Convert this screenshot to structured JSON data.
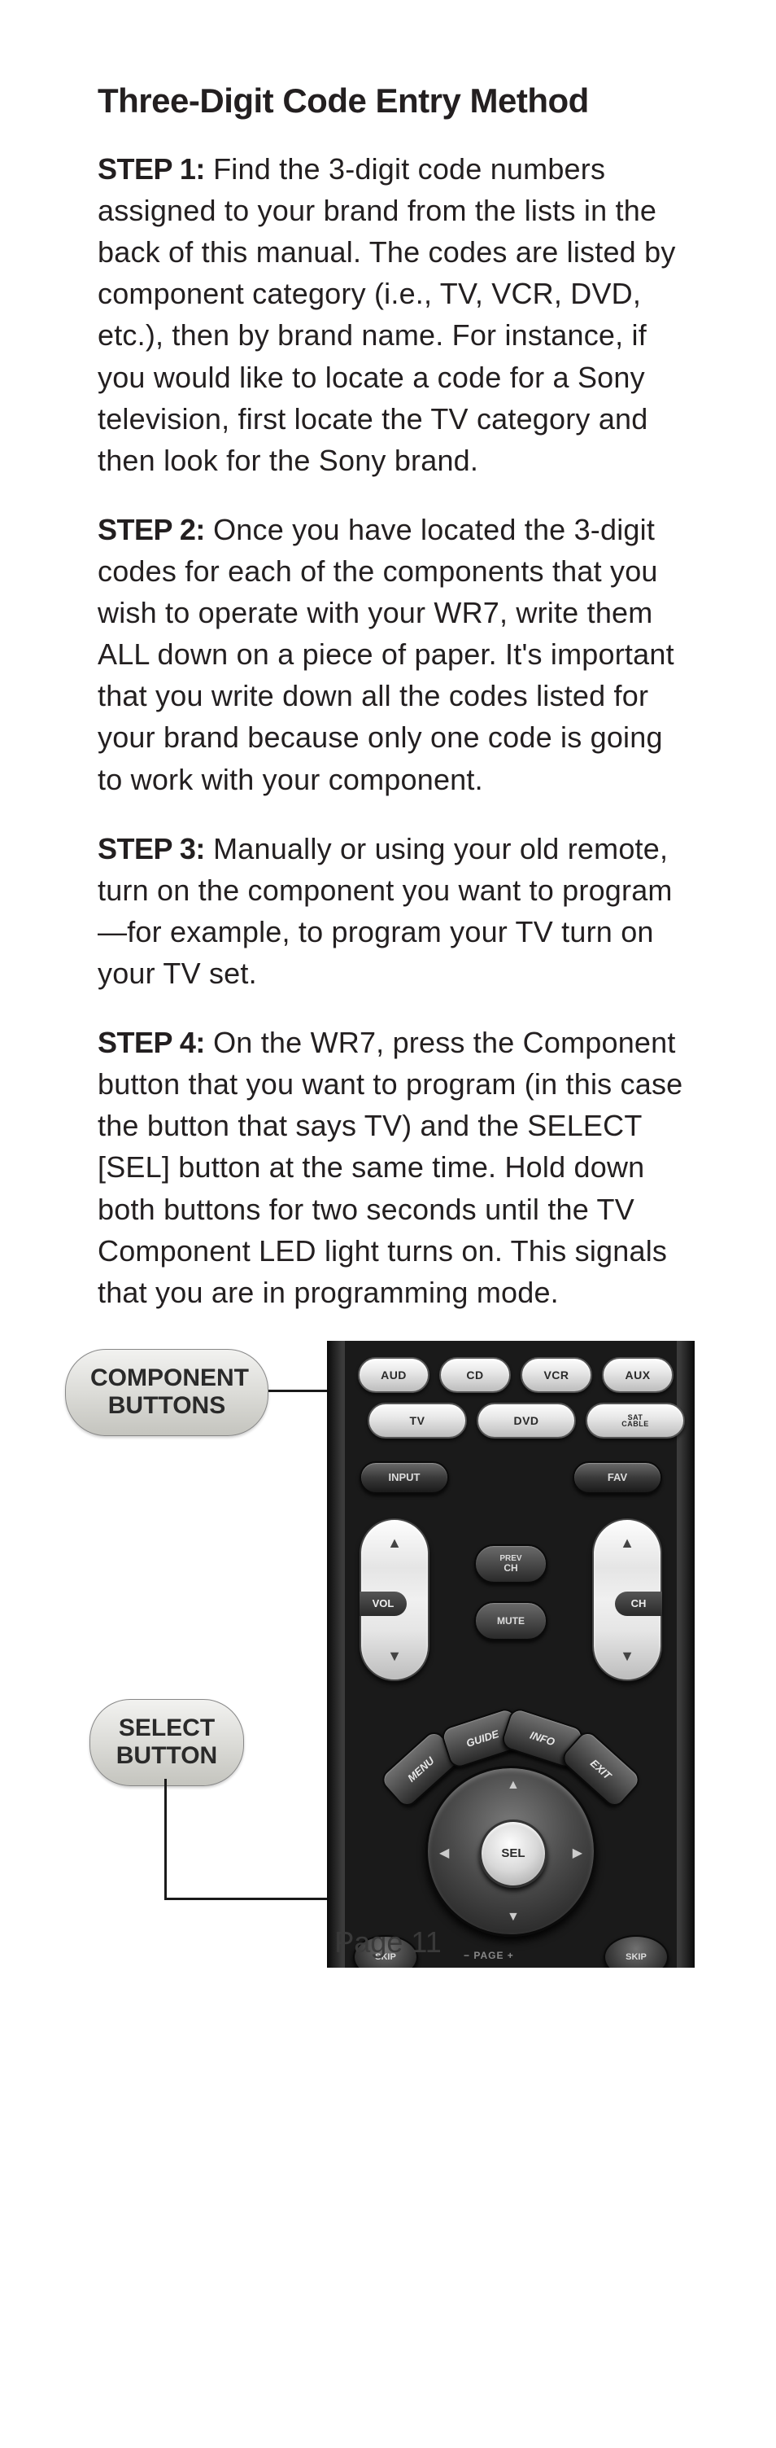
{
  "title": "Three-Digit Code Entry Method",
  "steps": [
    {
      "label": "STEP 1:",
      "text": " Find the 3-digit code numbers assigned to your brand from the lists in the back of this manual. The codes are listed by component category (i.e., TV, VCR, DVD, etc.), then by brand name. For instance, if you would like to locate a code for a Sony television, first locate the TV category and then look for the Sony brand."
    },
    {
      "label": "STEP 2:",
      "text": " Once you have located the 3-digit codes for each of the components that you wish to operate with your WR7, write them ALL down on a piece of paper. It's important that you write down all the codes listed for your brand because only one code is going to work with your component."
    },
    {
      "label": "STEP 3:",
      "text": " Manually or using your old remote, turn on the component you want to program—for example, to program your TV turn on your TV set."
    },
    {
      "label": "STEP 4:",
      "text": " On the WR7, press the Component button that you want to program (in this case the button that says TV) and the SELECT [SEL] button at the same time. Hold down both buttons for two seconds until the TV Component LED light turns on. This signals that you are in programming mode."
    }
  ],
  "callouts": {
    "component": "COMPONENT\nBUTTONS",
    "select": "SELECT\nBUTTON"
  },
  "remote": {
    "row1": [
      "AUD",
      "CD",
      "VCR",
      "AUX"
    ],
    "row2": [
      "TV",
      "DVD",
      "SAT CABLE"
    ],
    "input": "INPUT",
    "fav": "FAV",
    "vol": "VOL",
    "ch": "CH",
    "prev": "PREV CH",
    "mute": "MUTE",
    "menu": "MENU",
    "guide": "GUIDE",
    "info": "INFO",
    "exit": "EXIT",
    "sel": "SEL",
    "skip": "SKIP",
    "page": "−  PAGE  +"
  },
  "pageNumber": "Page 11"
}
